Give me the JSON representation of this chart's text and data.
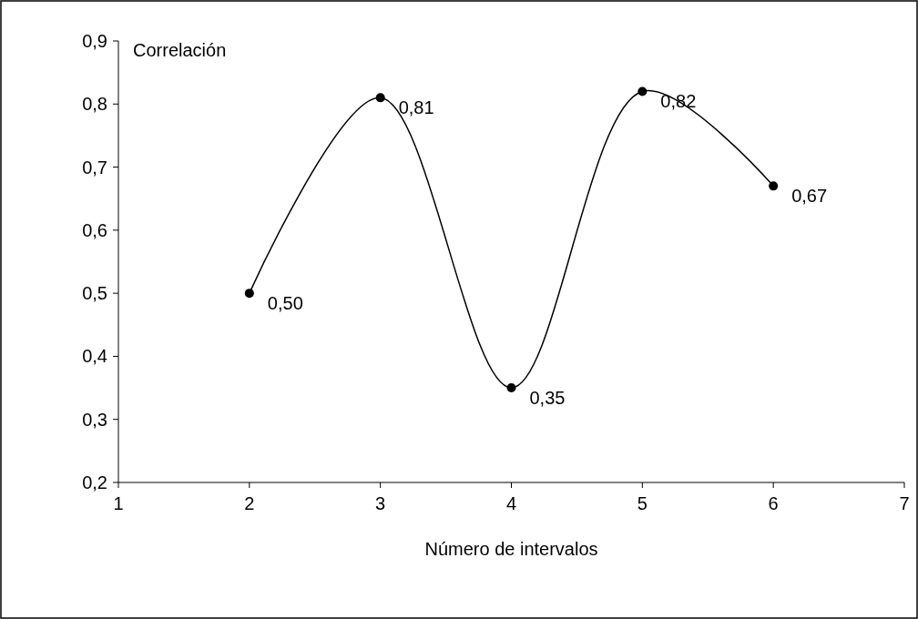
{
  "chart_data": {
    "type": "line",
    "xlabel": "Número de intervalos",
    "ylabel": "Correlación",
    "x": [
      2,
      3,
      4,
      5,
      6
    ],
    "values": [
      0.5,
      0.81,
      0.35,
      0.82,
      0.67
    ],
    "value_labels": [
      "0,50",
      "0,81",
      "0,35",
      "0,82",
      "0,67"
    ],
    "color": "#000000",
    "marker": "circle",
    "line_style": "solid",
    "grid": false,
    "xlim": [
      1,
      7
    ],
    "xticks": [
      1,
      2,
      3,
      4,
      5,
      6,
      7
    ],
    "ylim": [
      0.2,
      0.9
    ],
    "yticks": [
      {
        "value": 0.2,
        "label": "0,2"
      },
      {
        "value": 0.3,
        "label": "0,3"
      },
      {
        "value": 0.4,
        "label": "0,4"
      },
      {
        "value": 0.5,
        "label": "0,5"
      },
      {
        "value": 0.6,
        "label": "0,6"
      },
      {
        "value": 0.7,
        "label": "0,7"
      },
      {
        "value": 0.8,
        "label": "0,8"
      },
      {
        "value": 0.9,
        "label": "0,9"
      }
    ]
  }
}
